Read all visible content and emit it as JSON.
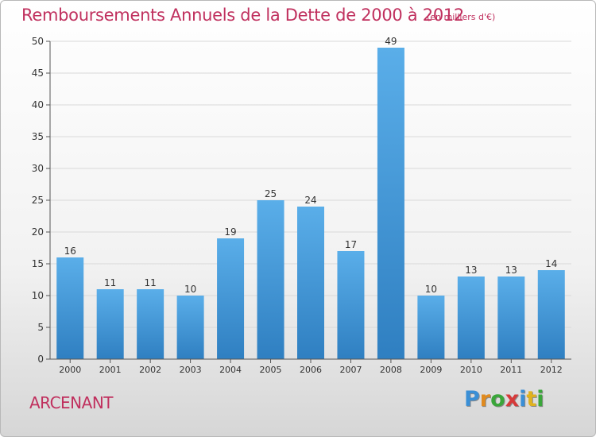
{
  "title": "Remboursements Annuels de la Dette de 2000 à 2012",
  "unit_note": "(en milliers d'€)",
  "commune": "ARCENANT",
  "logo": {
    "text": "Proxiti",
    "letters": [
      {
        "ch": "P",
        "color": "#3a8fd6"
      },
      {
        "ch": "r",
        "color": "#e08a1e"
      },
      {
        "ch": "o",
        "color": "#3aa63a"
      },
      {
        "ch": "x",
        "color": "#d63a3a"
      },
      {
        "ch": "i",
        "color": "#3a8fd6"
      },
      {
        "ch": "t",
        "color": "#e0b21e"
      },
      {
        "ch": "i",
        "color": "#3aa63a"
      }
    ]
  },
  "colors": {
    "bar_light": "#5aaee9",
    "bar_dark": "#2f7fc1",
    "title": "#c0305e",
    "grid": "#d9d9d9"
  },
  "chart_data": {
    "type": "bar",
    "categories": [
      "2000",
      "2001",
      "2002",
      "2003",
      "2004",
      "2005",
      "2006",
      "2007",
      "2008",
      "2009",
      "2010",
      "2011",
      "2012"
    ],
    "values": [
      16,
      11,
      11,
      10,
      19,
      25,
      24,
      17,
      49,
      10,
      13,
      13,
      14
    ],
    "ylim": [
      0,
      50
    ],
    "yticks": [
      0,
      5,
      10,
      15,
      20,
      25,
      30,
      35,
      40,
      45,
      50
    ],
    "grid": true,
    "data_labels": true
  }
}
